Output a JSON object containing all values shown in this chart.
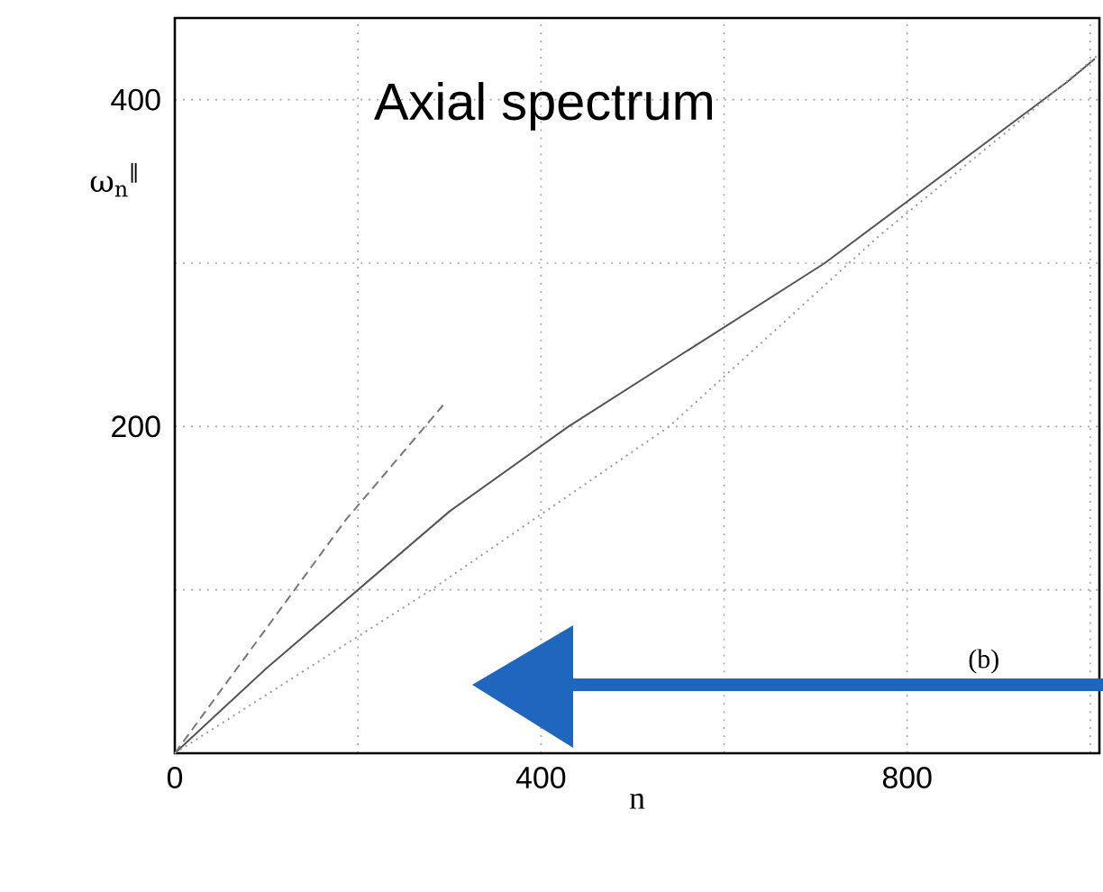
{
  "chart_data": {
    "type": "line",
    "xlabel": "n",
    "ylabel": "ω$_{n}$$^{∥}$",
    "annotations": [
      "Axial spectrum",
      "(b)"
    ],
    "xlim": [
      0,
      1010
    ],
    "ylim": [
      0,
      450
    ],
    "xticks": [
      0,
      {
        "value": 200,
        "label": null
      },
      400,
      {
        "value": 600,
        "label": null
      },
      800,
      {
        "value": 1000,
        "label": null
      }
    ],
    "yticks": [
      {
        "value": 100,
        "label": null
      },
      200,
      {
        "value": 300,
        "label": null
      },
      400
    ],
    "grid": true,
    "series": [
      {
        "color": "#555555",
        "line_style": "solid",
        "x": [
          0,
          100,
          200,
          300,
          430,
          710,
          975,
          1005
        ],
        "values": [
          0,
          52,
          100,
          148,
          200,
          300,
          411,
          425
        ]
      },
      {
        "color": "#777777",
        "line_style": "dashed",
        "x": [
          0,
          187,
          293
        ],
        "values": [
          0,
          143,
          213
        ]
      },
      {
        "color": "#999999",
        "line_style": "dotted",
        "x": [
          0,
          280,
          540,
          770,
          910,
          1010
        ],
        "values": [
          0,
          100,
          200,
          317,
          381,
          428
        ]
      }
    ]
  }
}
